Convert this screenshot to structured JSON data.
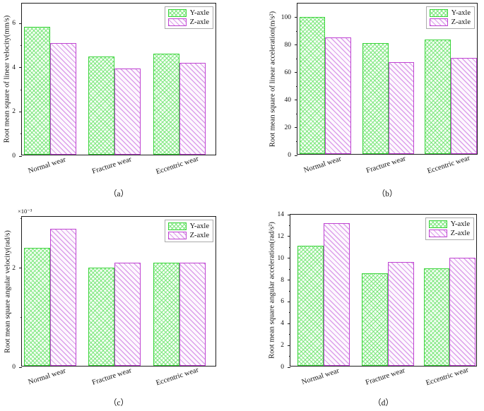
{
  "colors": {
    "y_axle_edge": "#3cd43c",
    "y_axle_hatch": "#6ee46e",
    "z_axle_edge": "#bf44d2",
    "z_axle_hatch": "#d896e8",
    "axis": "#1c1c1c"
  },
  "legend": {
    "items": [
      {
        "series": "y",
        "label": "Y-axle",
        "hatch": "crosshatch",
        "edge_color": "#3cd43c"
      },
      {
        "series": "z",
        "label": "Z-axle",
        "hatch": "backslash-diagonal",
        "edge_color": "#bf44d2"
      }
    ],
    "position": "top-right"
  },
  "chart_data": [
    {
      "id": "a",
      "type": "bar",
      "caption": "（a）",
      "ylabel": "Root mean square of linear velocity(mm/s)",
      "categories": [
        "Normal wear",
        "Fracture wear",
        "Eccentric wear"
      ],
      "series": [
        {
          "name": "Y-axle",
          "values": [
            5.85,
            4.47,
            4.6
          ]
        },
        {
          "name": "Z-axle",
          "values": [
            5.08,
            3.95,
            4.2
          ]
        }
      ],
      "yticks": [
        0,
        2,
        4,
        6
      ],
      "ylim": [
        0,
        6.9
      ],
      "grid": false,
      "legend_position": "top-right"
    },
    {
      "id": "b",
      "type": "bar",
      "caption": "（b）",
      "ylabel": "Root mean square of linear acceleration(m/s²)",
      "categories": [
        "Normal wear",
        "Fracture wear",
        "Eccentric wear"
      ],
      "series": [
        {
          "name": "Y-axle",
          "values": [
            100,
            81,
            83.5
          ]
        },
        {
          "name": "Z-axle",
          "values": [
            85,
            67,
            70.5
          ]
        }
      ],
      "yticks": [
        0,
        20,
        40,
        60,
        80,
        100
      ],
      "ylim": [
        0,
        110
      ],
      "grid": false,
      "legend_position": "top-right"
    },
    {
      "id": "c",
      "type": "bar",
      "caption": "（c）",
      "ylabel": "Root mean square angular velocity(rad/s)",
      "y_multiplier": "×10⁻³",
      "categories": [
        "Normal wear",
        "Fracture wear",
        "Eccentric wear"
      ],
      "series": [
        {
          "name": "Y-axle",
          "values": [
            2.4,
            2.0,
            2.11
          ]
        },
        {
          "name": "Z-axle",
          "values": [
            2.8,
            2.1,
            2.11
          ]
        }
      ],
      "yticks": [
        0,
        2
      ],
      "ylim": [
        0,
        3.04
      ],
      "grid": false,
      "legend_position": "top-right"
    },
    {
      "id": "d",
      "type": "bar",
      "caption": "（d）",
      "ylabel": "Root mean square angular acceleration(rad/s²)",
      "categories": [
        "Normal wear",
        "Fracture wear",
        "Eccentric wear"
      ],
      "series": [
        {
          "name": "Y-axle",
          "values": [
            11.1,
            8.6,
            9.0
          ]
        },
        {
          "name": "Z-axle",
          "values": [
            13.2,
            9.65,
            10.0
          ]
        }
      ],
      "yticks": [
        0,
        2,
        4,
        6,
        8,
        10,
        12,
        14
      ],
      "ylim": [
        0,
        14
      ],
      "grid": false,
      "legend_position": "top-right"
    }
  ]
}
